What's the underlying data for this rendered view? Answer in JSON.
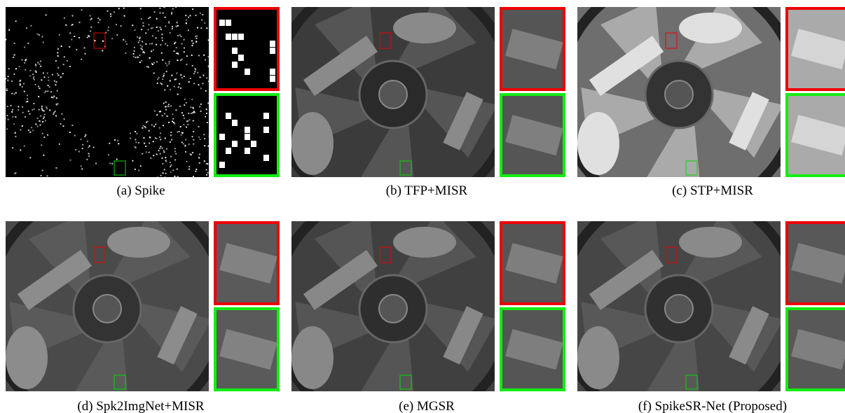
{
  "panels": [
    {
      "caption": "(a)  Spike"
    },
    {
      "caption": "(b)  TFP+MISR"
    },
    {
      "caption": "(c)  STP+MISR"
    },
    {
      "caption": "(d)  Spk2ImgNet+MISR"
    },
    {
      "caption": "(e)  MGSR"
    },
    {
      "caption": "(f)  SpikeSR-Net (Proposed)"
    }
  ]
}
